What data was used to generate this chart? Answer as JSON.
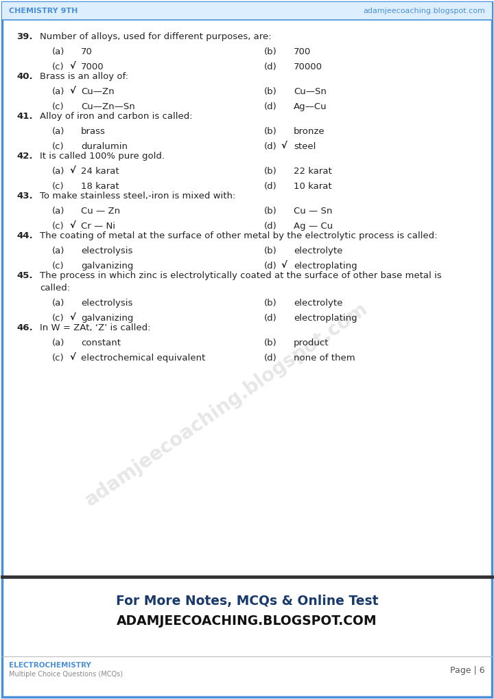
{
  "header_left": "CHEMISTRY 9TH",
  "header_right": "adamjeecoaching.blogspot.com",
  "header_color": "#4a90d9",
  "footer_left_line1": "ELECTROCHEMISTRY",
  "footer_left_line2": "Multiple Choice Questions (MCQs)",
  "footer_right": "Page | 6",
  "promo_line1": "For More Notes, MCQs & Online Test",
  "promo_line2": "ADAMJEECOACHING.BLOGSPOT.COM",
  "promo_color": "#1a3a6b",
  "watermark_text": "adamjeecoaching.blogspot.com",
  "border_color": "#4a90d9",
  "text_color": "#222222",
  "questions": [
    {
      "num": "39.",
      "text": "Number of alloys, used for different purposes, are:",
      "multiline": false,
      "options": [
        {
          "label": "(a)",
          "check": false,
          "text": "70",
          "col": 0
        },
        {
          "label": "(b)",
          "check": false,
          "text": "700",
          "col": 1
        },
        {
          "label": "(c)",
          "check": true,
          "text": "7000",
          "col": 0
        },
        {
          "label": "(d)",
          "check": false,
          "text": "70000",
          "col": 1
        }
      ]
    },
    {
      "num": "40.",
      "text": "Brass is an alloy of:",
      "multiline": false,
      "options": [
        {
          "label": "(a)",
          "check": true,
          "text": "Cu—Zn",
          "col": 0
        },
        {
          "label": "(b)",
          "check": false,
          "text": "Cu—Sn",
          "col": 1
        },
        {
          "label": "(c)",
          "check": false,
          "text": "Cu—Zn—Sn",
          "col": 0
        },
        {
          "label": "(d)",
          "check": false,
          "text": "Ag—Cu",
          "col": 1
        }
      ]
    },
    {
      "num": "41.",
      "text": "Alloy of iron and carbon is called:",
      "multiline": false,
      "options": [
        {
          "label": "(a)",
          "check": false,
          "text": "brass",
          "col": 0
        },
        {
          "label": "(b)",
          "check": false,
          "text": "bronze",
          "col": 1
        },
        {
          "label": "(c)",
          "check": false,
          "text": "duralumin",
          "col": 0
        },
        {
          "label": "(d)",
          "check": true,
          "text": "steel",
          "col": 1
        }
      ]
    },
    {
      "num": "42.",
      "text": "It is called 100% pure gold.",
      "multiline": false,
      "options": [
        {
          "label": "(a)",
          "check": true,
          "text": "24 karat",
          "col": 0
        },
        {
          "label": "(b)",
          "check": false,
          "text": "22 karat",
          "col": 1
        },
        {
          "label": "(c)",
          "check": false,
          "text": "18 karat",
          "col": 0
        },
        {
          "label": "(d)",
          "check": false,
          "text": "10 karat",
          "col": 1
        }
      ]
    },
    {
      "num": "43.",
      "text": "To make stainless steel,-iron is mixed with:",
      "multiline": false,
      "options": [
        {
          "label": "(a)",
          "check": false,
          "text": "Cu — Zn",
          "col": 0
        },
        {
          "label": "(b)",
          "check": false,
          "text": "Cu — Sn",
          "col": 1
        },
        {
          "label": "(c)",
          "check": true,
          "text": "Cr — Ni",
          "col": 0
        },
        {
          "label": "(d)",
          "check": false,
          "text": "Ag — Cu",
          "col": 1
        }
      ]
    },
    {
      "num": "44.",
      "text": "The coating of metal at the surface of other metal by the electrolytic process is called:",
      "multiline": false,
      "options": [
        {
          "label": "(a)",
          "check": false,
          "text": "electrolysis",
          "col": 0
        },
        {
          "label": "(b)",
          "check": false,
          "text": "electrolyte",
          "col": 1
        },
        {
          "label": "(c)",
          "check": false,
          "text": "galvanizing",
          "col": 0
        },
        {
          "label": "(d)",
          "check": true,
          "text": "electroplating",
          "col": 1
        }
      ]
    },
    {
      "num": "45.",
      "text": "The process in which zinc is electrolytically coated at the surface of other base metal is called:",
      "multiline": true,
      "text_line1": "The process in which zinc is electrolytically coated at the surface of other base metal is",
      "text_line2": "called:",
      "options": [
        {
          "label": "(a)",
          "check": false,
          "text": "electrolysis",
          "col": 0
        },
        {
          "label": "(b)",
          "check": false,
          "text": "electrolyte",
          "col": 1
        },
        {
          "label": "(c)",
          "check": true,
          "text": "galvanizing",
          "col": 0
        },
        {
          "label": "(d)",
          "check": false,
          "text": "electroplating",
          "col": 1
        }
      ]
    },
    {
      "num": "46.",
      "text": "In W = ZAt, ‘Z’ is called:",
      "multiline": false,
      "options": [
        {
          "label": "(a)",
          "check": false,
          "text": "constant",
          "col": 0
        },
        {
          "label": "(b)",
          "check": false,
          "text": "product",
          "col": 1
        },
        {
          "label": "(c)",
          "check": true,
          "text": "electrochemical equivalent",
          "col": 0
        },
        {
          "label": "(d)",
          "check": false,
          "text": "none of them",
          "col": 1
        }
      ]
    }
  ]
}
